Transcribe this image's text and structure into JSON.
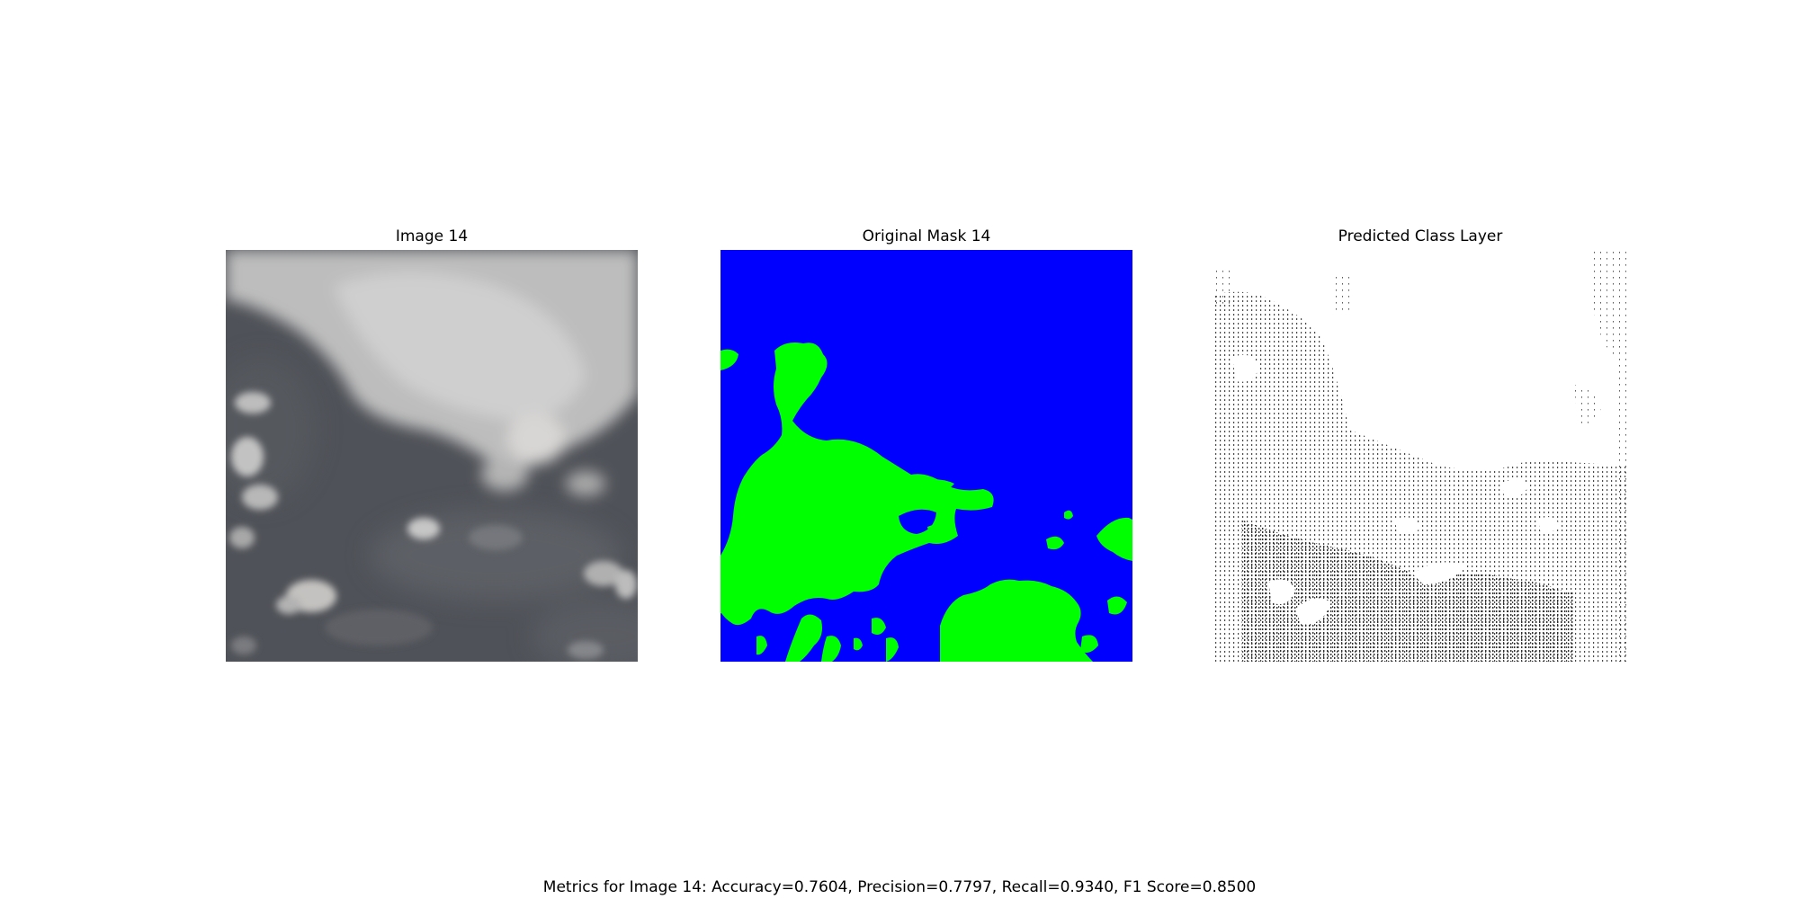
{
  "panels": [
    {
      "title": "Image 14"
    },
    {
      "title": "Original Mask 14"
    },
    {
      "title": "Predicted Class Layer"
    }
  ],
  "metrics": {
    "text": "Metrics for Image 14: Accuracy=0.7604, Precision=0.7797, Recall=0.9340, F1 Score=0.8500",
    "accuracy": 0.7604,
    "precision": 0.7797,
    "recall": 0.934,
    "f1_score": 0.85
  },
  "colors": {
    "mask_background": "#0000ff",
    "mask_cloud": "#00ff00",
    "sky": "#4f5258",
    "cloud": "#c9c9c9",
    "predicted_dots": "#3a3a3a"
  }
}
